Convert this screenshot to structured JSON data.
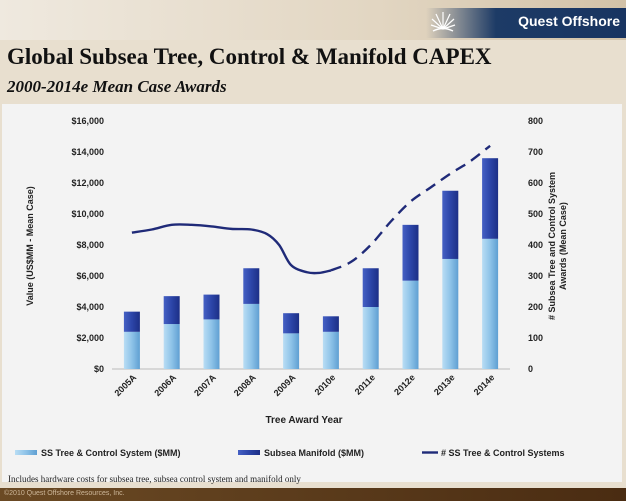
{
  "header": {
    "logo_text": "Quest Offshore",
    "title": "Global Subsea Tree, Control & Manifold CAPEX",
    "subtitle": "2000-2014e Mean Case Awards"
  },
  "footnote": "Includes hardware costs for subsea tree, subsea control system and manifold only",
  "copyright": "©2010 Quest Offshore Resources, Inc.",
  "colors": {
    "tree_control": "#8ec3e8",
    "manifold": "#2c45a8",
    "line": "#1f2a78"
  },
  "chart_data": {
    "type": "bar",
    "title": "",
    "xlabel": "Tree Award Year",
    "ylabel": "Value (US$MM - Mean Case)",
    "y2label": "# Subsea Tree and Control System Awards (Mean Case)",
    "categories": [
      "2005A",
      "2006A",
      "2007A",
      "2008A",
      "2009A",
      "2010e",
      "2011e",
      "2012e",
      "2013e",
      "2014e"
    ],
    "ylim": [
      0,
      16000
    ],
    "y2lim": [
      0,
      800
    ],
    "yticks": [
      "$16,000",
      "$14,000",
      "$12,000",
      "$10,000",
      "$8,000",
      "$6,000",
      "$4,000",
      "$2,000",
      "$0"
    ],
    "y2ticks": [
      "800",
      "700",
      "600",
      "500",
      "400",
      "300",
      "200",
      "100",
      "0"
    ],
    "stacked": true,
    "series": [
      {
        "name": "SS Tree & Control System ($MM)",
        "kind": "bar",
        "values": [
          2400,
          2900,
          3200,
          4200,
          2300,
          2400,
          4000,
          5700,
          7100,
          8400
        ]
      },
      {
        "name": "Subsea Manifold ($MM)",
        "kind": "bar",
        "values": [
          1300,
          1800,
          1600,
          2300,
          1300,
          1000,
          2500,
          3600,
          4400,
          5200
        ]
      },
      {
        "name": "# SS Tree & Control Systems",
        "kind": "line",
        "axis": "secondary",
        "x": [
          2005,
          2005.5,
          2006,
          2006.5,
          2007,
          2007.5,
          2008,
          2008.4,
          2008.7,
          2009,
          2009.4,
          2009.7,
          2010,
          2010.5,
          2011,
          2011.5,
          2012,
          2012.5,
          2013,
          2013.5,
          2014
        ],
        "values": [
          440,
          450,
          465,
          465,
          460,
          452,
          450,
          435,
          400,
          335,
          312,
          310,
          318,
          345,
          400,
          475,
          540,
          585,
          630,
          670,
          720
        ],
        "dashed_from": 2010
      }
    ],
    "legend_position": "bottom",
    "grid": false
  }
}
